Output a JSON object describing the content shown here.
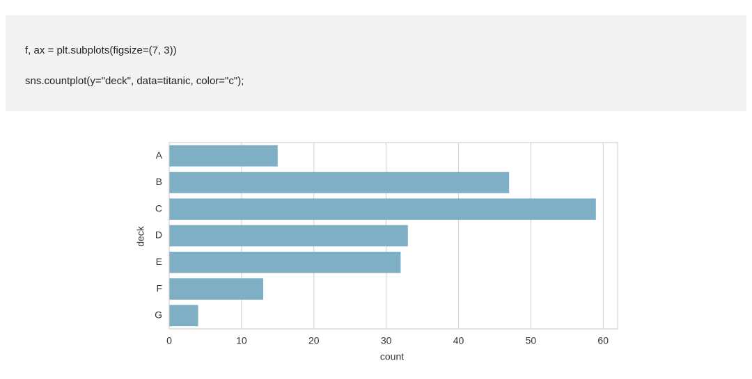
{
  "code": {
    "lines": [
      "f, ax = plt.subplots(figsize=(7, 3))",
      "sns.countplot(y=\"deck\", data=titanic, color=\"c\");"
    ]
  },
  "chart_data": {
    "type": "barh",
    "categories": [
      "A",
      "B",
      "C",
      "D",
      "E",
      "F",
      "G"
    ],
    "values": [
      15,
      47,
      59,
      33,
      32,
      13,
      4
    ],
    "color": "#7fafc4",
    "xlim": [
      0,
      62
    ],
    "xticks": [
      0,
      10,
      20,
      30,
      40,
      50,
      60
    ],
    "grid": true,
    "xlabel": "count",
    "ylabel": "deck"
  }
}
